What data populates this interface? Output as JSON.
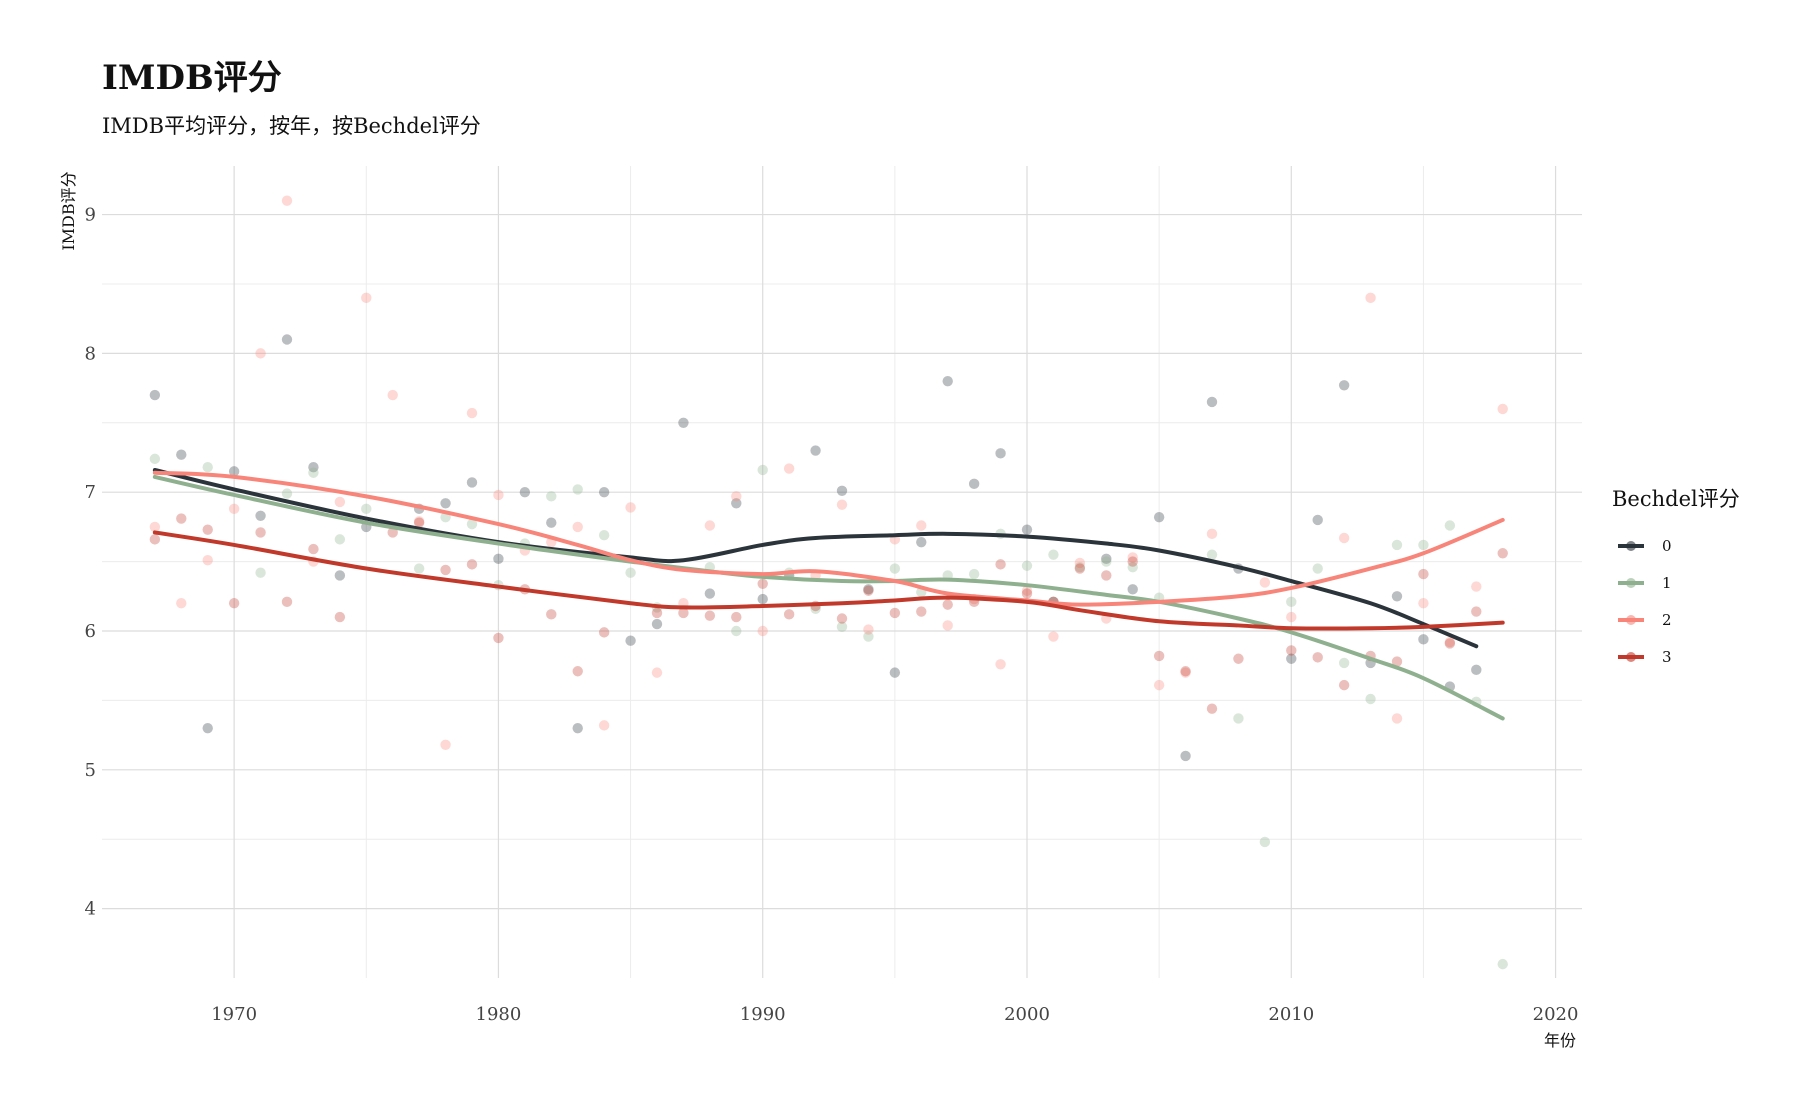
{
  "chart_data": {
    "type": "scatter",
    "title": "IMDB评分",
    "subtitle": "IMDB平均评分，按年，按Bechdel评分",
    "xlabel": "年份",
    "ylabel": "IMDB评分",
    "xlim": [
      1965,
      2021
    ],
    "ylim": [
      3.5,
      9.35
    ],
    "x_ticks": [
      1970,
      1980,
      1990,
      2000,
      2010,
      2020
    ],
    "y_ticks": [
      4,
      5,
      6,
      7,
      8,
      9
    ],
    "grid": true,
    "legend": {
      "title": "Bechdel评分",
      "position": "right"
    },
    "series": [
      {
        "name": "0",
        "color": "#2c343b",
        "points": [
          [
            1967,
            7.7
          ],
          [
            1968,
            7.27
          ],
          [
            1969,
            5.3
          ],
          [
            1970,
            7.15
          ],
          [
            1971,
            6.83
          ],
          [
            1972,
            8.1
          ],
          [
            1973,
            7.18
          ],
          [
            1974,
            6.4
          ],
          [
            1975,
            6.75
          ],
          [
            1977,
            6.88
          ],
          [
            1978,
            6.92
          ],
          [
            1979,
            7.07
          ],
          [
            1980,
            6.52
          ],
          [
            1981,
            7.0
          ],
          [
            1982,
            6.78
          ],
          [
            1983,
            5.3
          ],
          [
            1984,
            7.0
          ],
          [
            1985,
            5.93
          ],
          [
            1986,
            6.05
          ],
          [
            1987,
            7.5
          ],
          [
            1988,
            6.27
          ],
          [
            1989,
            6.92
          ],
          [
            1990,
            6.23
          ],
          [
            1991,
            6.4
          ],
          [
            1992,
            7.3
          ],
          [
            1993,
            7.01
          ],
          [
            1994,
            6.3
          ],
          [
            1995,
            5.7
          ],
          [
            1996,
            6.64
          ],
          [
            1997,
            7.8
          ],
          [
            1998,
            7.06
          ],
          [
            1999,
            7.28
          ],
          [
            2000,
            6.73
          ],
          [
            2001,
            6.21
          ],
          [
            2003,
            6.52
          ],
          [
            2004,
            6.3
          ],
          [
            2005,
            6.82
          ],
          [
            2006,
            5.1
          ],
          [
            2007,
            7.65
          ],
          [
            2008,
            6.45
          ],
          [
            2010,
            5.8
          ],
          [
            2011,
            6.8
          ],
          [
            2012,
            7.77
          ],
          [
            2013,
            5.77
          ],
          [
            2014,
            6.25
          ],
          [
            2015,
            5.94
          ],
          [
            2016,
            5.6
          ],
          [
            2017,
            5.72
          ]
        ],
        "smooth": [
          [
            1967,
            7.16
          ],
          [
            1970,
            7.02
          ],
          [
            1975,
            6.81
          ],
          [
            1980,
            6.64
          ],
          [
            1985,
            6.53
          ],
          [
            1987,
            6.51
          ],
          [
            1990,
            6.62
          ],
          [
            1992,
            6.67
          ],
          [
            1995,
            6.69
          ],
          [
            1997,
            6.7
          ],
          [
            2000,
            6.68
          ],
          [
            2003,
            6.63
          ],
          [
            2005,
            6.58
          ],
          [
            2008,
            6.46
          ],
          [
            2010,
            6.36
          ],
          [
            2013,
            6.2
          ],
          [
            2015,
            6.05
          ],
          [
            2017,
            5.89
          ]
        ]
      },
      {
        "name": "1",
        "color": "#8fb08f",
        "points": [
          [
            1967,
            7.24
          ],
          [
            1969,
            7.18
          ],
          [
            1971,
            6.42
          ],
          [
            1972,
            6.99
          ],
          [
            1973,
            7.14
          ],
          [
            1974,
            6.66
          ],
          [
            1975,
            6.88
          ],
          [
            1977,
            6.45
          ],
          [
            1978,
            6.82
          ],
          [
            1979,
            6.77
          ],
          [
            1980,
            6.33
          ],
          [
            1981,
            6.63
          ],
          [
            1982,
            6.97
          ],
          [
            1983,
            7.02
          ],
          [
            1984,
            6.69
          ],
          [
            1985,
            6.42
          ],
          [
            1986,
            6.17
          ],
          [
            1988,
            6.46
          ],
          [
            1989,
            6.0
          ],
          [
            1990,
            7.16
          ],
          [
            1991,
            6.42
          ],
          [
            1992,
            6.16
          ],
          [
            1993,
            6.03
          ],
          [
            1994,
            5.96
          ],
          [
            1995,
            6.45
          ],
          [
            1996,
            6.28
          ],
          [
            1997,
            6.4
          ],
          [
            1998,
            6.41
          ],
          [
            1999,
            6.7
          ],
          [
            2000,
            6.47
          ],
          [
            2001,
            6.55
          ],
          [
            2002,
            6.46
          ],
          [
            2003,
            6.5
          ],
          [
            2004,
            6.46
          ],
          [
            2005,
            6.24
          ],
          [
            2007,
            6.55
          ],
          [
            2008,
            5.37
          ],
          [
            2009,
            4.48
          ],
          [
            2010,
            6.21
          ],
          [
            2011,
            6.45
          ],
          [
            2012,
            5.77
          ],
          [
            2013,
            5.51
          ],
          [
            2014,
            6.62
          ],
          [
            2015,
            6.62
          ],
          [
            2016,
            6.76
          ],
          [
            2017,
            5.49
          ],
          [
            2018,
            3.6
          ]
        ],
        "smooth": [
          [
            1967,
            7.11
          ],
          [
            1970,
            6.98
          ],
          [
            1975,
            6.78
          ],
          [
            1980,
            6.63
          ],
          [
            1985,
            6.5
          ],
          [
            1988,
            6.43
          ],
          [
            1990,
            6.39
          ],
          [
            1993,
            6.36
          ],
          [
            1995,
            6.36
          ],
          [
            1997,
            6.37
          ],
          [
            2000,
            6.33
          ],
          [
            2003,
            6.26
          ],
          [
            2005,
            6.21
          ],
          [
            2008,
            6.09
          ],
          [
            2010,
            5.99
          ],
          [
            2013,
            5.8
          ],
          [
            2015,
            5.66
          ],
          [
            2018,
            5.37
          ]
        ]
      },
      {
        "name": "2",
        "color": "#f8857a",
        "points": [
          [
            1967,
            6.75
          ],
          [
            1968,
            6.2
          ],
          [
            1969,
            6.51
          ],
          [
            1970,
            6.88
          ],
          [
            1971,
            8.0
          ],
          [
            1972,
            9.1
          ],
          [
            1973,
            6.5
          ],
          [
            1974,
            6.93
          ],
          [
            1975,
            8.4
          ],
          [
            1976,
            7.7
          ],
          [
            1977,
            6.79
          ],
          [
            1978,
            5.18
          ],
          [
            1979,
            7.57
          ],
          [
            1980,
            6.98
          ],
          [
            1981,
            6.58
          ],
          [
            1982,
            6.64
          ],
          [
            1983,
            6.75
          ],
          [
            1984,
            5.32
          ],
          [
            1985,
            6.89
          ],
          [
            1986,
            5.7
          ],
          [
            1987,
            6.2
          ],
          [
            1988,
            6.76
          ],
          [
            1989,
            6.97
          ],
          [
            1990,
            6.0
          ],
          [
            1991,
            7.17
          ],
          [
            1992,
            6.4
          ],
          [
            1993,
            6.91
          ],
          [
            1994,
            6.01
          ],
          [
            1995,
            6.66
          ],
          [
            1996,
            6.76
          ],
          [
            1997,
            6.04
          ],
          [
            1998,
            6.23
          ],
          [
            1999,
            5.76
          ],
          [
            2000,
            6.29
          ],
          [
            2001,
            5.96
          ],
          [
            2002,
            6.49
          ],
          [
            2003,
            6.09
          ],
          [
            2004,
            6.53
          ],
          [
            2005,
            5.61
          ],
          [
            2006,
            5.7
          ],
          [
            2007,
            6.7
          ],
          [
            2009,
            6.35
          ],
          [
            2010,
            6.1
          ],
          [
            2012,
            6.67
          ],
          [
            2013,
            8.4
          ],
          [
            2014,
            5.37
          ],
          [
            2015,
            6.2
          ],
          [
            2016,
            5.92
          ],
          [
            2017,
            6.32
          ],
          [
            2018,
            7.6
          ]
        ],
        "smooth": [
          [
            1967,
            7.14
          ],
          [
            1970,
            7.11
          ],
          [
            1975,
            6.97
          ],
          [
            1980,
            6.77
          ],
          [
            1983,
            6.62
          ],
          [
            1985,
            6.51
          ],
          [
            1987,
            6.44
          ],
          [
            1990,
            6.41
          ],
          [
            1992,
            6.43
          ],
          [
            1995,
            6.36
          ],
          [
            1997,
            6.27
          ],
          [
            2000,
            6.22
          ],
          [
            2002,
            6.19
          ],
          [
            2005,
            6.21
          ],
          [
            2008,
            6.25
          ],
          [
            2010,
            6.31
          ],
          [
            2013,
            6.45
          ],
          [
            2015,
            6.56
          ],
          [
            2018,
            6.8
          ]
        ]
      },
      {
        "name": "3",
        "color": "#c0392b",
        "points": [
          [
            1967,
            6.66
          ],
          [
            1968,
            6.81
          ],
          [
            1969,
            6.73
          ],
          [
            1970,
            6.2
          ],
          [
            1971,
            6.71
          ],
          [
            1972,
            6.21
          ],
          [
            1973,
            6.59
          ],
          [
            1974,
            6.1
          ],
          [
            1976,
            6.71
          ],
          [
            1977,
            6.78
          ],
          [
            1978,
            6.44
          ],
          [
            1979,
            6.48
          ],
          [
            1980,
            5.95
          ],
          [
            1981,
            6.3
          ],
          [
            1982,
            6.12
          ],
          [
            1983,
            5.71
          ],
          [
            1984,
            5.99
          ],
          [
            1986,
            6.13
          ],
          [
            1987,
            6.13
          ],
          [
            1988,
            6.11
          ],
          [
            1989,
            6.1
          ],
          [
            1990,
            6.34
          ],
          [
            1991,
            6.12
          ],
          [
            1992,
            6.18
          ],
          [
            1993,
            6.09
          ],
          [
            1994,
            6.29
          ],
          [
            1995,
            6.13
          ],
          [
            1996,
            6.14
          ],
          [
            1997,
            6.19
          ],
          [
            1998,
            6.21
          ],
          [
            1999,
            6.48
          ],
          [
            2000,
            6.27
          ],
          [
            2001,
            6.21
          ],
          [
            2002,
            6.45
          ],
          [
            2003,
            6.4
          ],
          [
            2004,
            6.5
          ],
          [
            2005,
            5.82
          ],
          [
            2006,
            5.71
          ],
          [
            2007,
            5.44
          ],
          [
            2008,
            5.8
          ],
          [
            2010,
            5.86
          ],
          [
            2011,
            5.81
          ],
          [
            2012,
            5.61
          ],
          [
            2013,
            5.82
          ],
          [
            2014,
            5.78
          ],
          [
            2015,
            6.41
          ],
          [
            2016,
            5.91
          ],
          [
            2017,
            6.14
          ],
          [
            2018,
            6.56
          ]
        ],
        "smooth": [
          [
            1967,
            6.71
          ],
          [
            1970,
            6.62
          ],
          [
            1975,
            6.45
          ],
          [
            1980,
            6.32
          ],
          [
            1985,
            6.2
          ],
          [
            1987,
            6.17
          ],
          [
            1990,
            6.18
          ],
          [
            1993,
            6.2
          ],
          [
            1995,
            6.22
          ],
          [
            1997,
            6.24
          ],
          [
            2000,
            6.21
          ],
          [
            2002,
            6.15
          ],
          [
            2005,
            6.07
          ],
          [
            2008,
            6.04
          ],
          [
            2010,
            6.02
          ],
          [
            2013,
            6.02
          ],
          [
            2015,
            6.03
          ],
          [
            2018,
            6.06
          ]
        ]
      }
    ]
  }
}
